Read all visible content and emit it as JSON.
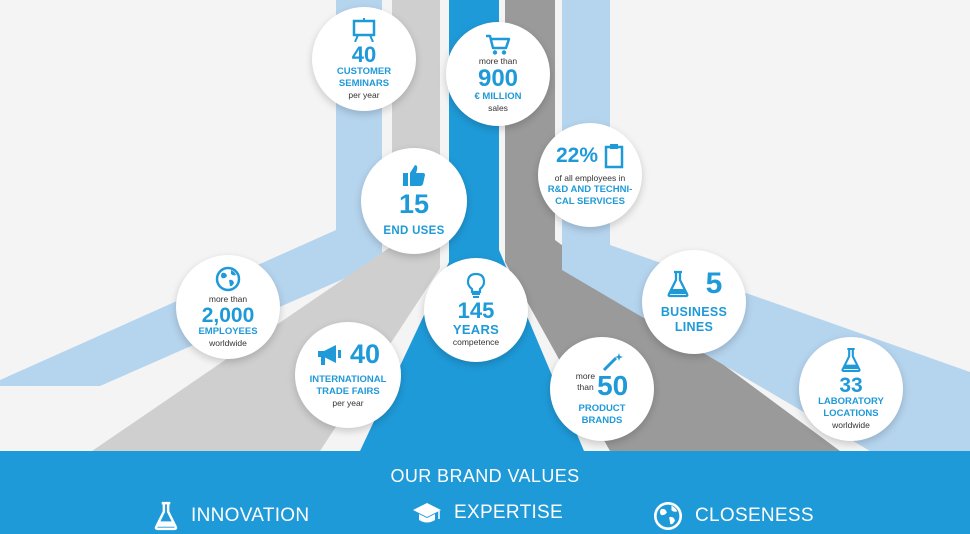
{
  "stats": {
    "seminars": {
      "value": "40",
      "label": "CUSTOMER SEMINARS",
      "sub": "per year",
      "icon": "easel-icon"
    },
    "sales": {
      "pre": "more than",
      "value": "900",
      "label": "€ MILLION",
      "sub": "sales",
      "icon": "cart-icon"
    },
    "employees_rd": {
      "value": "22%",
      "sub": "of all employees in",
      "label1": "R&D AND TECHNI-",
      "label2": "CAL SERVICES",
      "icon": "clipboard-icon"
    },
    "end_uses": {
      "value": "15",
      "label": "END USES",
      "icon": "thumbs-up-icon"
    },
    "employees": {
      "pre": "more than",
      "value": "2,000",
      "label": "EMPLOYEES",
      "sub": "worldwide",
      "icon": "globe-icon"
    },
    "years": {
      "value": "145",
      "label": "YEARS",
      "sub": "competence",
      "icon": "lightbulb-icon"
    },
    "business_lines": {
      "value": "5",
      "label1": "BUSINESS",
      "label2": "LINES",
      "icon": "flask-icon"
    },
    "trade_fairs": {
      "value": "40",
      "label1": "INTERNATIONAL",
      "label2": "TRADE FAIRS",
      "sub": "per year",
      "icon": "megaphone-icon"
    },
    "brands": {
      "pre1": "more",
      "pre2": "than",
      "value": "50",
      "label1": "PRODUCT",
      "label2": "BRANDS",
      "icon": "magic-wand-icon"
    },
    "labs": {
      "value": "33",
      "label1": "LABORATORY",
      "label2": "LOCATIONS",
      "sub": "worldwide",
      "icon": "flask-icon"
    }
  },
  "footer": {
    "title": "OUR BRAND VALUES",
    "values": [
      {
        "label": "INNOVATION",
        "icon": "flask-icon"
      },
      {
        "label": "EXPERTISE",
        "icon": "graduation-cap-icon"
      },
      {
        "label": "CLOSENESS",
        "icon": "globe-icon"
      }
    ]
  },
  "colors": {
    "accent": "#1f9ad8",
    "light_blue": "#b5d4ee",
    "light_gray": "#cfcfcf",
    "dark_gray": "#9a9a9a",
    "background": "#f4f4f4"
  }
}
